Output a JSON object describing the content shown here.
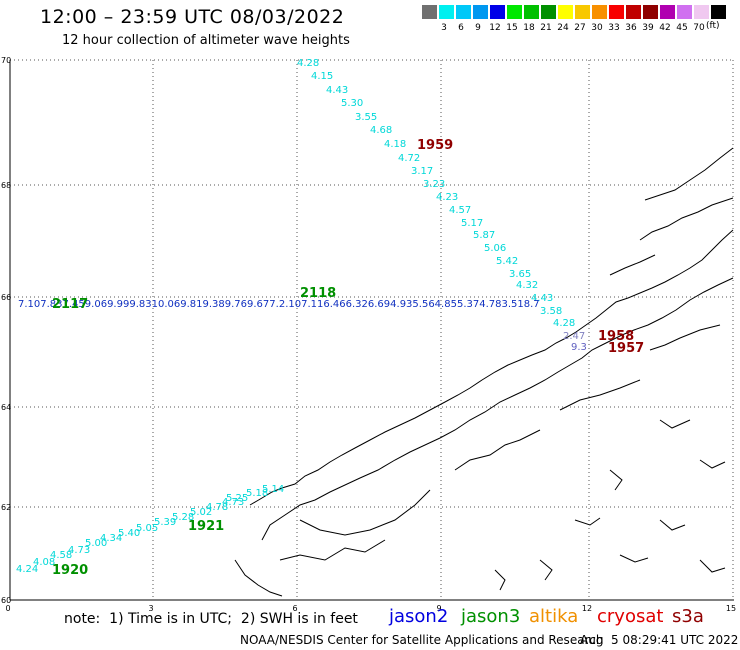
{
  "title": "12:00 – 23:59 UTC 08/03/2022",
  "subtitle": "12 hour collection of altimeter wave heights",
  "legend": {
    "unit": "(ft)",
    "swatches": [
      {
        "color": "#707070",
        "label": ""
      },
      {
        "color": "#00f0f0",
        "label": "3"
      },
      {
        "color": "#00c8f8",
        "label": "6"
      },
      {
        "color": "#0098f0",
        "label": "9"
      },
      {
        "color": "#0000e8",
        "label": "12"
      },
      {
        "color": "#00e800",
        "label": "15"
      },
      {
        "color": "#00c000",
        "label": "18"
      },
      {
        "color": "#009000",
        "label": "21"
      },
      {
        "color": "#ffff00",
        "label": "24"
      },
      {
        "color": "#f8c800",
        "label": "27"
      },
      {
        "color": "#f89000",
        "label": "30"
      },
      {
        "color": "#f80000",
        "label": "33"
      },
      {
        "color": "#c00000",
        "label": "36"
      },
      {
        "color": "#900000",
        "label": "39"
      },
      {
        "color": "#b000b0",
        "label": "42"
      },
      {
        "color": "#d070f0",
        "label": "45"
      },
      {
        "color": "#f0c8f0",
        "label": "70"
      },
      {
        "color": "#000000",
        "label": ""
      }
    ]
  },
  "map_axes": {
    "lon_ticks": [
      "0",
      "3",
      "6",
      "9",
      "12",
      "15"
    ],
    "lat_ticks": [
      "70",
      "68",
      "66",
      "64",
      "62",
      "60"
    ]
  },
  "tracks": {
    "north_south": [
      "4.28",
      "4.15",
      "4.43",
      "5.30",
      "3.55",
      "4.68",
      "4.18",
      "4.72",
      "3.17",
      "3.23",
      "4.23",
      "4.57",
      "5.17",
      "5.87",
      "5.06",
      "5.42",
      "3.65",
      "4.32",
      "4.43",
      "3.58",
      "4.28",
      "2.47"
    ],
    "west_east_text": "7.107.837.459.069.999.8310.069.819.389.769.677.2.107.116.466.326.694.935.564.855.374.783.518.7",
    "west_east_tail": "9.3",
    "southwest": [
      "4.24",
      "4.08",
      "4.58",
      "4.73",
      "5.00",
      "4.34",
      "5.40",
      "5.05",
      "5.39",
      "5.28",
      "5.02",
      "4.78",
      "4.73",
      "5.25",
      "5.18",
      "5.14"
    ]
  },
  "time_labels": {
    "t1959": "1959",
    "t2118": "2118",
    "t2117": "2117",
    "t1958": "1958",
    "t1957": "1957",
    "t1921": "1921",
    "t1920": "1920"
  },
  "colors": {
    "track_cyan": "#00d8d8",
    "track_blue": "#1030c0",
    "jason2": "#0000e0",
    "jason3": "#009000",
    "altika": "#f09000",
    "cryosat": "#e00000",
    "s3a": "#900000"
  },
  "footer": {
    "note": "note:  1) Time is in UTC;  2) SWH is in feet",
    "satellites": [
      "jason2",
      "jason3",
      "altika",
      "cryosat",
      "s3a"
    ],
    "org": "NOAA/NESDIS Center for Satellite Applications and Research",
    "date": "Aug  5 08:29:41 UTC 2022"
  }
}
